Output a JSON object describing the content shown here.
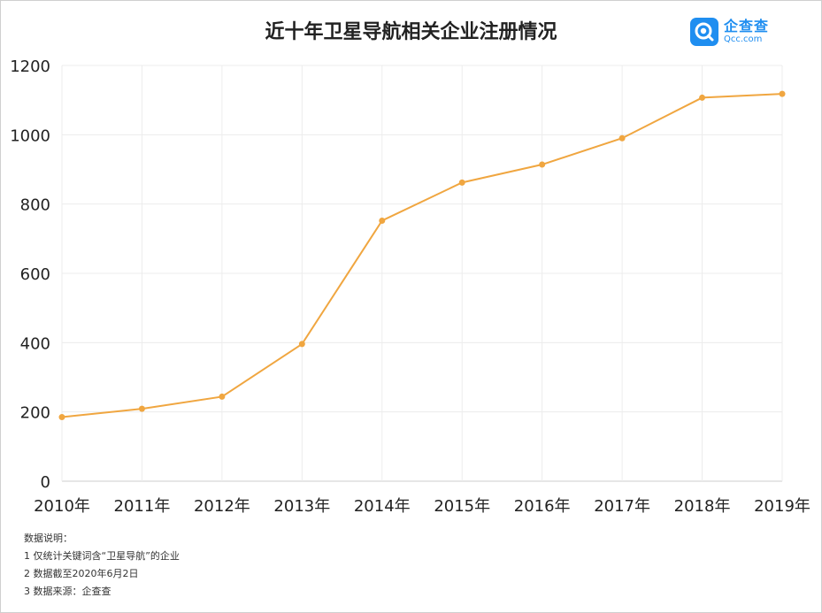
{
  "header": {
    "title": "近十年卫星导航相关企业注册情况"
  },
  "logo": {
    "name": "企查查",
    "domain": "Qcc.com",
    "brand_color": "#1f8ef0"
  },
  "chart_data": {
    "type": "line",
    "title": "近十年卫星导航相关企业注册情况",
    "xlabel": "",
    "ylabel": "",
    "categories": [
      "2010年",
      "2011年",
      "2012年",
      "2013年",
      "2014年",
      "2015年",
      "2016年",
      "2017年",
      "2018年",
      "2019年"
    ],
    "series": [
      {
        "values": [
          185,
          209,
          244,
          396,
          752,
          862,
          914,
          990,
          1107,
          1118
        ]
      }
    ],
    "ylim": [
      0,
      1200
    ],
    "yticks": [
      0,
      200,
      400,
      600,
      800,
      1000,
      1200
    ],
    "grid": true,
    "legend": "none",
    "line_color": "#f0a640"
  },
  "notes": {
    "heading": "数据说明：",
    "items": [
      "1 仅统计关键词含“卫星导航”的企业",
      "2 数据截至2020年6月2日",
      "3 数据来源：企查查"
    ]
  }
}
